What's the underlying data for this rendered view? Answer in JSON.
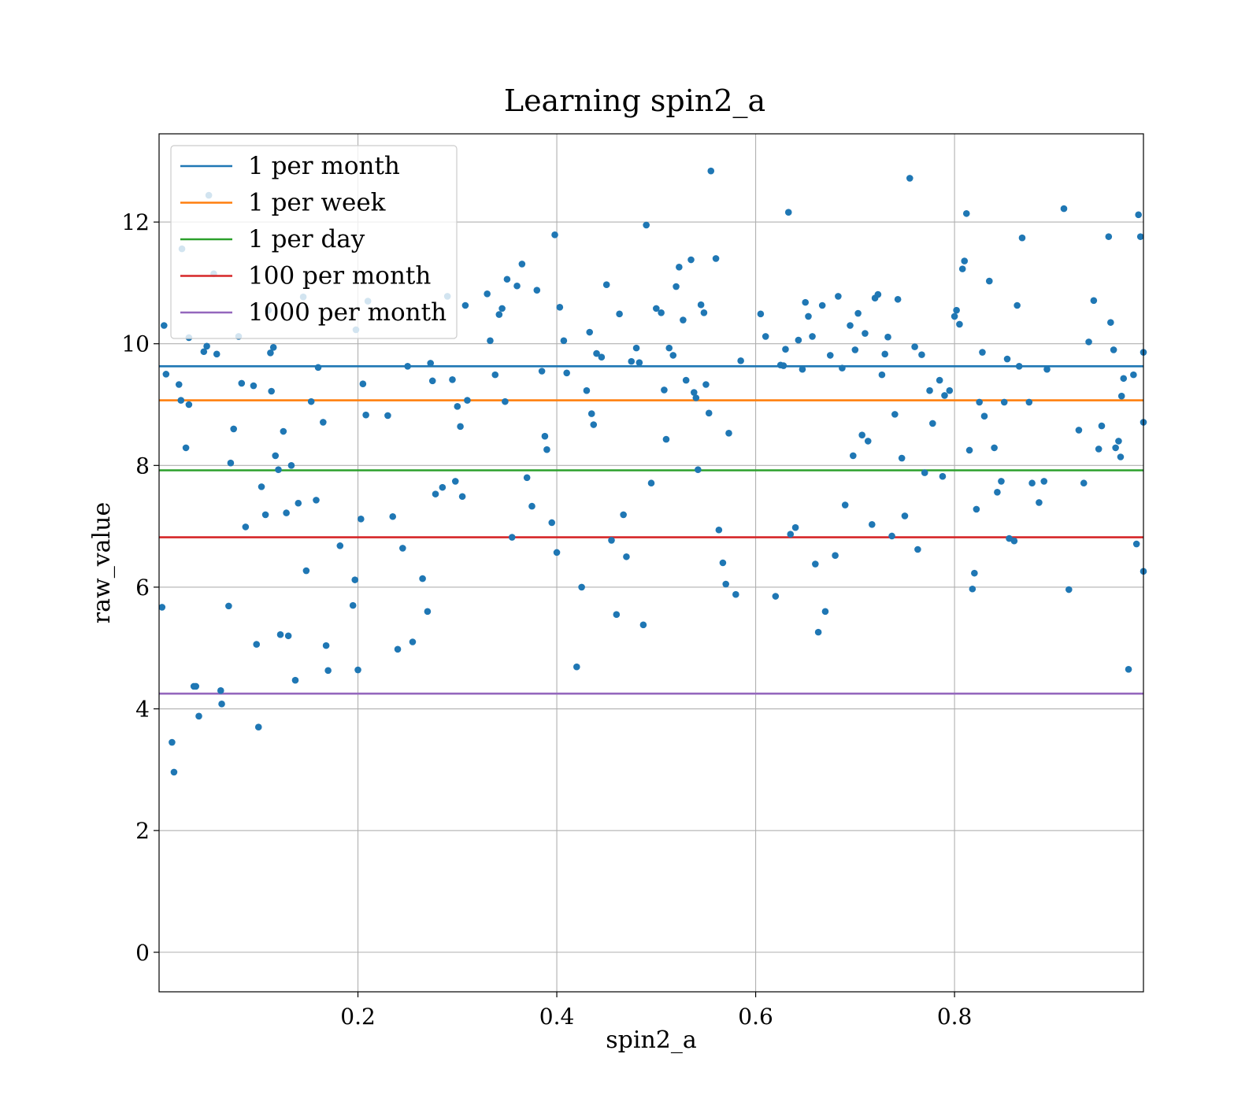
{
  "chart_data": {
    "type": "scatter",
    "title": "Learning spin2_a",
    "xlabel": "spin2_a",
    "ylabel": "raw_value",
    "xlim": [
      0.0,
      0.99
    ],
    "ylim": [
      -0.65,
      13.45
    ],
    "x_ticks": [
      0.2,
      0.4,
      0.6,
      0.8
    ],
    "x_tick_labels": [
      "0.2",
      "0.4",
      "0.6",
      "0.8"
    ],
    "y_ticks": [
      0,
      2,
      4,
      6,
      8,
      10,
      12
    ],
    "y_tick_labels": [
      "0",
      "2",
      "4",
      "6",
      "8",
      "10",
      "12"
    ],
    "grid": true,
    "legend_position": "top-left",
    "point_color": "#1f77b4",
    "series": [
      {
        "type": "scatter",
        "points": [
          [
            0.003,
            5.67
          ],
          [
            0.005,
            10.3
          ],
          [
            0.007,
            9.5
          ],
          [
            0.013,
            3.45
          ],
          [
            0.015,
            2.96
          ],
          [
            0.02,
            9.33
          ],
          [
            0.022,
            9.07
          ],
          [
            0.023,
            11.56
          ],
          [
            0.027,
            8.29
          ],
          [
            0.03,
            10.1
          ],
          [
            0.03,
            9.0
          ],
          [
            0.035,
            4.37
          ],
          [
            0.037,
            4.37
          ],
          [
            0.04,
            3.88
          ],
          [
            0.045,
            9.87
          ],
          [
            0.048,
            9.96
          ],
          [
            0.05,
            12.44
          ],
          [
            0.055,
            11.15
          ],
          [
            0.058,
            9.83
          ],
          [
            0.062,
            4.3
          ],
          [
            0.063,
            4.08
          ],
          [
            0.07,
            5.69
          ],
          [
            0.072,
            8.04
          ],
          [
            0.075,
            8.6
          ],
          [
            0.08,
            10.12
          ],
          [
            0.083,
            9.35
          ],
          [
            0.087,
            6.99
          ],
          [
            0.095,
            9.31
          ],
          [
            0.098,
            5.06
          ],
          [
            0.1,
            3.7
          ],
          [
            0.103,
            7.65
          ],
          [
            0.107,
            7.19
          ],
          [
            0.11,
            10.55
          ],
          [
            0.112,
            9.85
          ],
          [
            0.113,
            9.22
          ],
          [
            0.115,
            9.94
          ],
          [
            0.117,
            8.16
          ],
          [
            0.12,
            7.93
          ],
          [
            0.122,
            5.22
          ],
          [
            0.125,
            8.56
          ],
          [
            0.128,
            7.22
          ],
          [
            0.13,
            5.2
          ],
          [
            0.133,
            8.0
          ],
          [
            0.137,
            4.47
          ],
          [
            0.14,
            7.38
          ],
          [
            0.145,
            10.77
          ],
          [
            0.148,
            6.27
          ],
          [
            0.153,
            9.05
          ],
          [
            0.158,
            7.43
          ],
          [
            0.16,
            9.61
          ],
          [
            0.165,
            8.71
          ],
          [
            0.168,
            5.04
          ],
          [
            0.17,
            4.63
          ],
          [
            0.182,
            6.68
          ],
          [
            0.195,
            5.7
          ],
          [
            0.197,
            6.12
          ],
          [
            0.198,
            10.23
          ],
          [
            0.2,
            4.64
          ],
          [
            0.203,
            7.12
          ],
          [
            0.205,
            9.34
          ],
          [
            0.208,
            8.83
          ],
          [
            0.21,
            10.7
          ],
          [
            0.23,
            8.82
          ],
          [
            0.235,
            7.16
          ],
          [
            0.24,
            4.98
          ],
          [
            0.245,
            6.64
          ],
          [
            0.25,
            9.63
          ],
          [
            0.255,
            5.1
          ],
          [
            0.265,
            6.14
          ],
          [
            0.27,
            5.6
          ],
          [
            0.273,
            9.68
          ],
          [
            0.275,
            9.39
          ],
          [
            0.278,
            7.53
          ],
          [
            0.285,
            7.64
          ],
          [
            0.29,
            10.78
          ],
          [
            0.295,
            9.41
          ],
          [
            0.298,
            7.74
          ],
          [
            0.3,
            8.97
          ],
          [
            0.303,
            8.64
          ],
          [
            0.305,
            7.49
          ],
          [
            0.308,
            10.63
          ],
          [
            0.31,
            9.07
          ],
          [
            0.33,
            10.82
          ],
          [
            0.333,
            10.05
          ],
          [
            0.338,
            9.49
          ],
          [
            0.342,
            10.48
          ],
          [
            0.345,
            10.58
          ],
          [
            0.348,
            9.05
          ],
          [
            0.35,
            11.06
          ],
          [
            0.355,
            6.82
          ],
          [
            0.36,
            10.95
          ],
          [
            0.365,
            11.31
          ],
          [
            0.37,
            7.8
          ],
          [
            0.375,
            7.33
          ],
          [
            0.38,
            10.88
          ],
          [
            0.385,
            9.55
          ],
          [
            0.388,
            8.48
          ],
          [
            0.39,
            8.26
          ],
          [
            0.395,
            7.06
          ],
          [
            0.398,
            11.79
          ],
          [
            0.4,
            6.57
          ],
          [
            0.403,
            10.6
          ],
          [
            0.407,
            10.05
          ],
          [
            0.41,
            9.52
          ],
          [
            0.42,
            4.69
          ],
          [
            0.425,
            6.0
          ],
          [
            0.43,
            9.23
          ],
          [
            0.433,
            10.19
          ],
          [
            0.435,
            8.85
          ],
          [
            0.437,
            8.67
          ],
          [
            0.44,
            9.84
          ],
          [
            0.445,
            9.78
          ],
          [
            0.45,
            10.97
          ],
          [
            0.455,
            6.77
          ],
          [
            0.46,
            5.55
          ],
          [
            0.463,
            10.49
          ],
          [
            0.467,
            7.19
          ],
          [
            0.47,
            6.5
          ],
          [
            0.475,
            9.71
          ],
          [
            0.48,
            9.93
          ],
          [
            0.483,
            9.69
          ],
          [
            0.487,
            5.38
          ],
          [
            0.49,
            11.95
          ],
          [
            0.495,
            7.71
          ],
          [
            0.5,
            10.58
          ],
          [
            0.505,
            10.51
          ],
          [
            0.508,
            9.24
          ],
          [
            0.51,
            8.43
          ],
          [
            0.513,
            9.93
          ],
          [
            0.517,
            9.81
          ],
          [
            0.52,
            10.94
          ],
          [
            0.523,
            11.26
          ],
          [
            0.527,
            10.39
          ],
          [
            0.53,
            9.4
          ],
          [
            0.535,
            11.38
          ],
          [
            0.538,
            9.2
          ],
          [
            0.54,
            9.11
          ],
          [
            0.542,
            7.93
          ],
          [
            0.545,
            10.64
          ],
          [
            0.548,
            10.51
          ],
          [
            0.55,
            9.33
          ],
          [
            0.553,
            8.86
          ],
          [
            0.555,
            12.84
          ],
          [
            0.56,
            11.4
          ],
          [
            0.563,
            6.94
          ],
          [
            0.567,
            6.4
          ],
          [
            0.57,
            6.05
          ],
          [
            0.573,
            8.53
          ],
          [
            0.58,
            5.88
          ],
          [
            0.585,
            9.72
          ],
          [
            0.605,
            10.49
          ],
          [
            0.61,
            10.12
          ],
          [
            0.62,
            5.85
          ],
          [
            0.625,
            9.65
          ],
          [
            0.628,
            9.64
          ],
          [
            0.63,
            9.91
          ],
          [
            0.633,
            12.16
          ],
          [
            0.635,
            6.87
          ],
          [
            0.64,
            6.98
          ],
          [
            0.643,
            10.06
          ],
          [
            0.647,
            9.58
          ],
          [
            0.65,
            10.68
          ],
          [
            0.653,
            10.45
          ],
          [
            0.657,
            10.12
          ],
          [
            0.66,
            6.38
          ],
          [
            0.663,
            5.26
          ],
          [
            0.667,
            10.63
          ],
          [
            0.67,
            5.6
          ],
          [
            0.675,
            9.81
          ],
          [
            0.68,
            6.52
          ],
          [
            0.683,
            10.78
          ],
          [
            0.687,
            9.6
          ],
          [
            0.69,
            7.35
          ],
          [
            0.695,
            10.3
          ],
          [
            0.698,
            8.16
          ],
          [
            0.7,
            9.9
          ],
          [
            0.703,
            10.5
          ],
          [
            0.707,
            8.5
          ],
          [
            0.71,
            10.17
          ],
          [
            0.713,
            8.4
          ],
          [
            0.717,
            7.03
          ],
          [
            0.72,
            10.75
          ],
          [
            0.723,
            10.81
          ],
          [
            0.727,
            9.49
          ],
          [
            0.73,
            9.83
          ],
          [
            0.733,
            10.11
          ],
          [
            0.737,
            6.84
          ],
          [
            0.74,
            8.84
          ],
          [
            0.743,
            10.73
          ],
          [
            0.747,
            8.12
          ],
          [
            0.75,
            7.17
          ],
          [
            0.755,
            12.72
          ],
          [
            0.76,
            9.95
          ],
          [
            0.763,
            6.62
          ],
          [
            0.767,
            9.82
          ],
          [
            0.77,
            7.88
          ],
          [
            0.775,
            9.23
          ],
          [
            0.778,
            8.69
          ],
          [
            0.785,
            9.4
          ],
          [
            0.788,
            7.82
          ],
          [
            0.79,
            9.15
          ],
          [
            0.795,
            9.23
          ],
          [
            0.8,
            10.45
          ],
          [
            0.802,
            10.55
          ],
          [
            0.805,
            10.32
          ],
          [
            0.808,
            11.23
          ],
          [
            0.81,
            11.36
          ],
          [
            0.812,
            12.14
          ],
          [
            0.815,
            8.25
          ],
          [
            0.818,
            5.97
          ],
          [
            0.82,
            6.23
          ],
          [
            0.822,
            7.28
          ],
          [
            0.825,
            9.04
          ],
          [
            0.828,
            9.86
          ],
          [
            0.83,
            8.81
          ],
          [
            0.835,
            11.03
          ],
          [
            0.84,
            8.29
          ],
          [
            0.843,
            7.56
          ],
          [
            0.847,
            7.74
          ],
          [
            0.85,
            9.04
          ],
          [
            0.853,
            9.75
          ],
          [
            0.855,
            6.8
          ],
          [
            0.86,
            6.76
          ],
          [
            0.863,
            10.63
          ],
          [
            0.865,
            9.63
          ],
          [
            0.868,
            11.74
          ],
          [
            0.875,
            9.04
          ],
          [
            0.878,
            7.71
          ],
          [
            0.885,
            7.39
          ],
          [
            0.89,
            7.74
          ],
          [
            0.893,
            9.58
          ],
          [
            0.91,
            12.22
          ],
          [
            0.915,
            5.96
          ],
          [
            0.925,
            8.58
          ],
          [
            0.93,
            7.71
          ],
          [
            0.935,
            10.03
          ],
          [
            0.94,
            10.71
          ],
          [
            0.945,
            8.27
          ],
          [
            0.948,
            8.65
          ],
          [
            0.955,
            11.76
          ],
          [
            0.957,
            10.35
          ],
          [
            0.96,
            9.9
          ],
          [
            0.962,
            8.29
          ],
          [
            0.965,
            8.4
          ],
          [
            0.967,
            8.14
          ],
          [
            0.968,
            9.14
          ],
          [
            0.97,
            9.43
          ],
          [
            0.975,
            4.65
          ],
          [
            0.98,
            9.49
          ],
          [
            0.983,
            6.71
          ],
          [
            0.985,
            12.12
          ],
          [
            0.987,
            11.76
          ],
          [
            0.99,
            6.26
          ],
          [
            0.99,
            9.86
          ],
          [
            0.99,
            8.71
          ]
        ]
      }
    ],
    "lines": [
      {
        "name": "1 per month",
        "y": 9.63,
        "color": "#1f77b4"
      },
      {
        "name": "1 per week",
        "y": 9.07,
        "color": "#ff7f0e"
      },
      {
        "name": "1 per day",
        "y": 7.92,
        "color": "#2ca02c"
      },
      {
        "name": "100 per month",
        "y": 6.82,
        "color": "#d62728"
      },
      {
        "name": "1000 per month",
        "y": 4.25,
        "color": "#9467bd"
      }
    ]
  }
}
